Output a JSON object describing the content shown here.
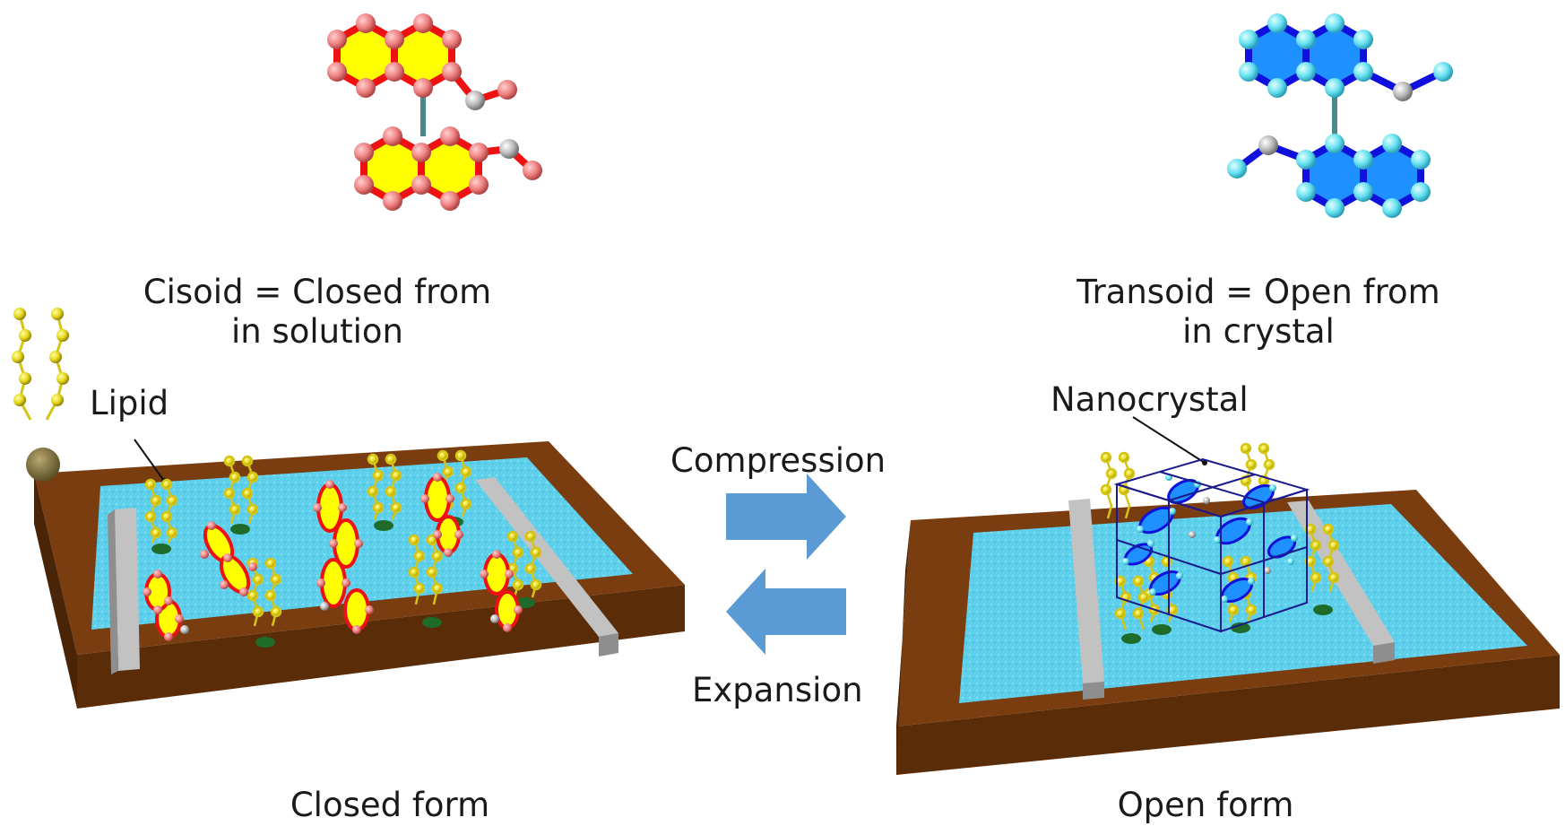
{
  "cisoid": {
    "line1": "Cisoid = Closed from",
    "line2": "in solution"
  },
  "transoid": {
    "line1": "Transoid = Open from",
    "line2": "in crystal"
  },
  "labels": {
    "lipid": "Lipid",
    "nanocrystal": "Nanocrystal"
  },
  "arrows": {
    "forward": "Compression",
    "backward": "Expansion"
  },
  "captions": {
    "left": "Closed form",
    "right": "Open form"
  },
  "colors": {
    "closed_ring_fill": "#ffff00",
    "closed_bond": "#ee1111",
    "closed_atom": "#ee8080",
    "open_ring_fill": "#1e90ff",
    "open_bond": "#1010dd",
    "open_atom": "#66e0f0",
    "heteroatom": "#b8b8b8",
    "trough_wood": "#7a3d10",
    "water": "#5ed0ec",
    "barrier": "#bcbcbc",
    "lipid_chain": "#e6d61a",
    "lipid_head": "#7a6a35",
    "arrow": "#5b9bd5",
    "crystal_frame": "#1a1a8c"
  }
}
